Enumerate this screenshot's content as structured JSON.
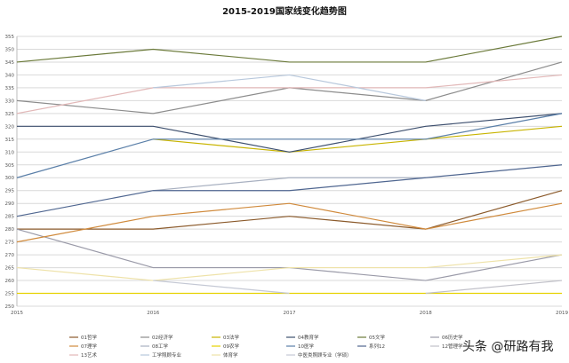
{
  "chart_data": {
    "type": "line",
    "title": "2015-2019国家线变化趋势图",
    "x": [
      "2015",
      "2016",
      "2017",
      "2018",
      "2019"
    ],
    "ylim": [
      250,
      355
    ],
    "ytick_step": 5,
    "grid": true,
    "legend_position": "bottom",
    "series": [
      {
        "name": "01哲学",
        "color": "#8b5a2b",
        "values": [
          280,
          280,
          285,
          280,
          295
        ]
      },
      {
        "name": "02经济学",
        "color": "#8c8c8c",
        "values": [
          330,
          325,
          335,
          330,
          345
        ]
      },
      {
        "name": "03法学",
        "color": "#c8b400",
        "values": [
          null,
          315,
          310,
          315,
          320
        ]
      },
      {
        "name": "04教育学",
        "color": "#3d4f6e",
        "values": [
          320,
          320,
          310,
          320,
          325
        ]
      },
      {
        "name": "05文学",
        "color": "#6b7a3a",
        "values": [
          345,
          350,
          345,
          345,
          355
        ]
      },
      {
        "name": "06历史学",
        "color": "#9a9aa8",
        "values": [
          280,
          265,
          265,
          260,
          270
        ]
      },
      {
        "name": "07理学",
        "color": "#d08a3c",
        "values": [
          275,
          285,
          290,
          280,
          290
        ]
      },
      {
        "name": "08工学",
        "color": "#a8b0c0",
        "values": [
          null,
          295,
          300,
          300,
          null
        ]
      },
      {
        "name": "09农学",
        "color": "#e6d200",
        "values": [
          255,
          255,
          255,
          255,
          255
        ]
      },
      {
        "name": "10医学",
        "color": "#5a7fa8",
        "values": [
          300,
          315,
          315,
          315,
          325
        ]
      },
      {
        "name": "系列12",
        "color": "#4f6690",
        "values": [
          285,
          295,
          295,
          300,
          305
        ]
      },
      {
        "name": "12管理学",
        "color": "#c0c0c8",
        "values": [
          null,
          null,
          null,
          255,
          260
        ]
      },
      {
        "name": "13艺术",
        "color": "#e2b8b8",
        "values": [
          325,
          335,
          335,
          335,
          340
        ]
      },
      {
        "name": "工学照顾专业",
        "color": "#b8c8dc",
        "values": [
          null,
          335,
          340,
          330,
          null
        ]
      },
      {
        "name": "体育学",
        "color": "#eee2a8",
        "values": [
          265,
          260,
          265,
          265,
          270
        ]
      },
      {
        "name": "中医类照顾专业（学硕）",
        "color": "#c4c8d4",
        "values": [
          null,
          260,
          255,
          null,
          null
        ]
      }
    ]
  },
  "watermark": "头条 @研路有我"
}
